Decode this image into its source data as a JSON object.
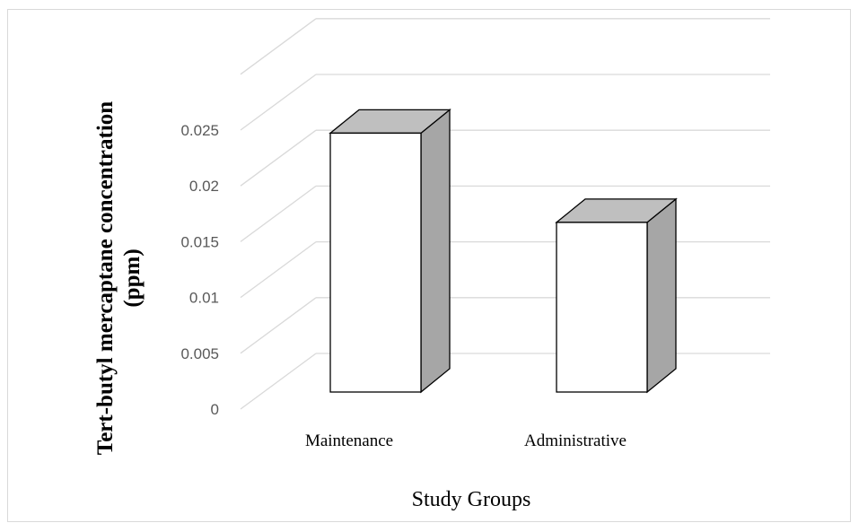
{
  "chart_data": {
    "type": "bar",
    "style": "3d-column",
    "categories": [
      "Maintenance",
      "Administrative"
    ],
    "values": [
      0.0232,
      0.0152
    ],
    "ylim": [
      0,
      0.03
    ],
    "yticks": [
      0,
      0.005,
      0.01,
      0.015,
      0.02,
      0.025
    ],
    "ytick_labels": [
      "0",
      "0.005",
      "0.01",
      "0.015",
      "0.02",
      "0.025"
    ],
    "xlabel": "Study Groups",
    "ylabel_lines": [
      "Tert-butyl mercaptane concentration",
      "(ppm)"
    ],
    "grid": true,
    "legend": "none",
    "colors": {
      "bar_front": "#ffffff",
      "bar_top": "#bfbfbf",
      "bar_side": "#a6a6a6",
      "bar_edge": "#000000",
      "grid": "#d9d9d9",
      "tick_text": "#595959"
    }
  }
}
